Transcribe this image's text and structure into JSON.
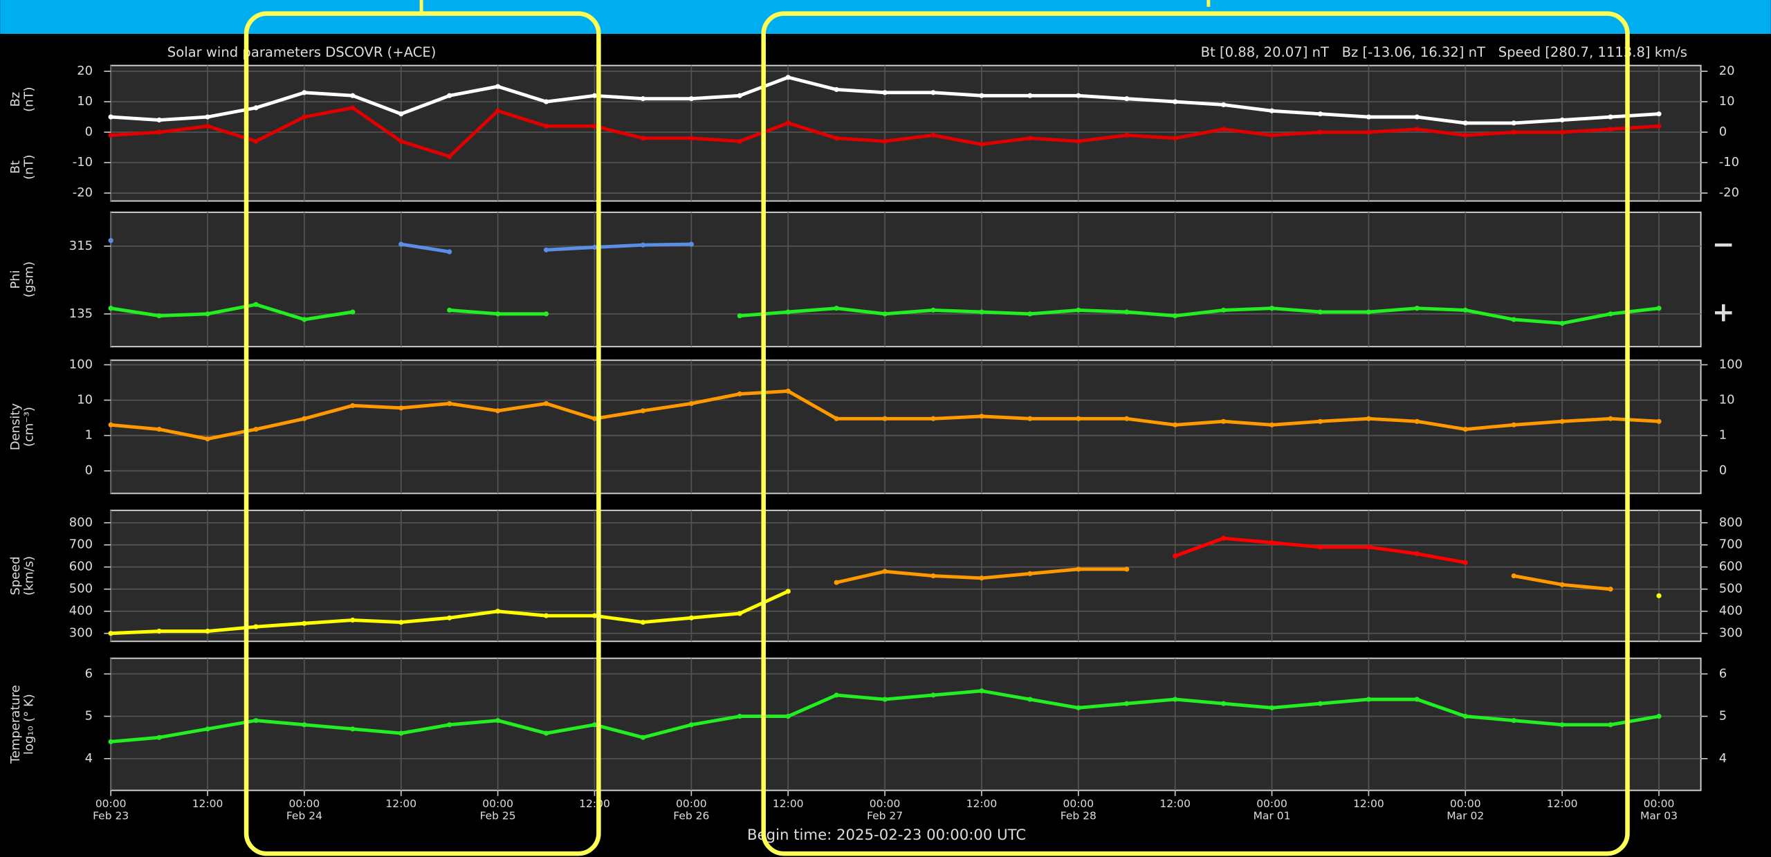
{
  "header_title": "Solar wind parameters DSCOVR (+ACE)",
  "header_stats": "Bt [0.88, 20.07] nT   Bz [-13.06, 16.32] nT   Speed [280.7, 1113.8] km/s",
  "footer": "Begin time: 2025-02-23 00:00:00 UTC",
  "chart_data": [
    {
      "type": "line",
      "grid": true,
      "log": false,
      "ylabels": [
        {
          "lines": [
            "Bz",
            "(nT)"
          ],
          "color": "#e00000"
        },
        {
          "lines": [
            "Bt",
            "(nT)"
          ],
          "color": "#ffffff"
        }
      ],
      "x": [
        0,
        6,
        12,
        18,
        24,
        30,
        36,
        42,
        48,
        54,
        60,
        66,
        72,
        78,
        84,
        90,
        96,
        102,
        108,
        114,
        120,
        126,
        132,
        138,
        144,
        150,
        156,
        162,
        168,
        174,
        180,
        186,
        192
      ],
      "xlim": [
        0,
        197.2
      ],
      "ylim": [
        -22.6,
        21.9
      ],
      "yticks": [
        -20,
        -10,
        0,
        10,
        20
      ],
      "series": [
        {
          "color": "#e00000",
          "values": [
            -1,
            0,
            2,
            -3,
            5,
            8,
            -3,
            -8,
            7,
            2,
            2,
            -2,
            -2,
            -3,
            3,
            -2,
            -3,
            -1,
            -4,
            -2,
            -3,
            -1,
            -2,
            1,
            -1,
            0,
            0,
            1,
            -1,
            0,
            0,
            1,
            2
          ]
        },
        {
          "color": "#ffffff",
          "values": [
            5,
            4,
            5,
            8,
            13,
            12,
            6,
            12,
            15,
            10,
            12,
            11,
            11,
            12,
            18,
            14,
            13,
            13,
            12,
            12,
            12,
            11,
            10,
            9,
            7,
            6,
            5,
            5,
            3,
            3,
            4,
            5,
            6
          ]
        }
      ]
    },
    {
      "type": "line",
      "grid": true,
      "log": false,
      "ylabels": [
        {
          "lines": [
            "Phi",
            "(gsm)"
          ],
          "color": "#5b8ee6"
        }
      ],
      "x": [
        0,
        6,
        12,
        18,
        24,
        30,
        36,
        42,
        48,
        54,
        60,
        66,
        72,
        78,
        84,
        90,
        96,
        102,
        108,
        114,
        120,
        126,
        132,
        138,
        144,
        150,
        156,
        162,
        168,
        174,
        180,
        186,
        192
      ],
      "xlim": [
        0,
        197.2
      ],
      "ylim": [
        48,
        405
      ],
      "yticks": [
        135,
        315
      ],
      "right_markers": [
        {
          "text": "−",
          "color": "#5b8ee6",
          "value": 315
        },
        {
          "text": "+",
          "color": "#22ee22",
          "value": 135
        }
      ],
      "series": [
        {
          "color": "#22ee22",
          "values": [
            150,
            130,
            135,
            160,
            120,
            140,
            null,
            145,
            135,
            135,
            null,
            null,
            null,
            130,
            140,
            150,
            135,
            145,
            140,
            135,
            145,
            140,
            130,
            145,
            150,
            140,
            140,
            150,
            145,
            120,
            110,
            135,
            150
          ]
        },
        {
          "color": "#5b8ee6",
          "values": [
            330,
            null,
            null,
            null,
            null,
            null,
            320,
            300,
            null,
            305,
            312,
            318,
            320,
            null,
            null,
            null,
            null,
            null,
            null,
            null,
            null,
            null,
            null,
            null,
            null,
            null,
            null,
            null,
            null,
            null,
            null,
            null,
            null
          ]
        }
      ]
    },
    {
      "type": "line",
      "grid": true,
      "log": true,
      "ylabels": [
        {
          "lines": [
            "Density",
            "(cm⁻³)"
          ],
          "color": "#ff9900"
        }
      ],
      "x": [
        0,
        6,
        12,
        18,
        24,
        30,
        36,
        42,
        48,
        54,
        60,
        66,
        72,
        78,
        84,
        90,
        96,
        102,
        108,
        114,
        120,
        126,
        132,
        138,
        144,
        150,
        156,
        162,
        168,
        174,
        180,
        186,
        192
      ],
      "xlim": [
        0,
        197.2
      ],
      "ylim": [
        0.023,
        135
      ],
      "yticks": [
        {
          "value": 0.1,
          "label": "0"
        },
        1,
        10,
        100
      ],
      "series": [
        {
          "color": "#ff9900",
          "values": [
            2,
            1.5,
            0.8,
            1.5,
            3,
            7,
            6,
            8,
            5,
            8,
            3,
            5,
            8,
            15,
            18,
            3,
            3,
            3,
            3.5,
            3,
            3,
            3,
            2,
            2.5,
            2,
            2.5,
            3,
            2.5,
            1.5,
            2,
            2.5,
            3,
            2.5
          ]
        }
      ]
    },
    {
      "type": "line",
      "grid": true,
      "log": false,
      "ylabels": [
        {
          "lines": [
            "Speed",
            "(km/s)"
          ],
          "color": "#dddd00"
        }
      ],
      "x": [
        0,
        6,
        12,
        18,
        24,
        30,
        36,
        42,
        48,
        54,
        60,
        66,
        72,
        78,
        84,
        90,
        96,
        102,
        108,
        114,
        120,
        126,
        132,
        138,
        144,
        150,
        156,
        162,
        168,
        174,
        180,
        186,
        192
      ],
      "xlim": [
        0,
        197.2
      ],
      "ylim": [
        264,
        856
      ],
      "yticks": [
        300,
        400,
        500,
        600,
        700,
        800
      ],
      "series": [
        {
          "color": "#ffff00",
          "values": [
            300,
            310,
            310,
            330,
            345,
            360,
            350,
            370,
            400,
            380,
            380,
            350,
            370,
            390,
            490,
            null,
            null,
            null,
            null,
            null,
            null,
            null,
            null,
            null,
            null,
            null,
            null,
            null,
            null,
            null,
            null,
            null,
            470
          ]
        },
        {
          "color": "#ff9900",
          "values": [
            null,
            null,
            null,
            null,
            null,
            null,
            null,
            null,
            null,
            null,
            null,
            null,
            null,
            null,
            null,
            530,
            580,
            560,
            550,
            570,
            590,
            590,
            null,
            null,
            null,
            null,
            null,
            null,
            null,
            560,
            520,
            500,
            null
          ]
        },
        {
          "color": "#ff0000",
          "values": [
            null,
            null,
            null,
            null,
            null,
            null,
            null,
            null,
            null,
            null,
            null,
            null,
            null,
            null,
            null,
            null,
            null,
            null,
            null,
            null,
            null,
            null,
            650,
            730,
            710,
            690,
            690,
            660,
            620,
            null,
            null,
            null,
            null
          ]
        }
      ]
    },
    {
      "type": "line",
      "grid": true,
      "log": false,
      "ylabels": [
        {
          "lines": [
            "Temperature",
            "log₁₀ (° K)"
          ],
          "color": "#22ee22"
        }
      ],
      "x": [
        0,
        6,
        12,
        18,
        24,
        30,
        36,
        42,
        48,
        54,
        60,
        66,
        72,
        78,
        84,
        90,
        96,
        102,
        108,
        114,
        120,
        126,
        132,
        138,
        144,
        150,
        156,
        162,
        168,
        174,
        180,
        186,
        192
      ],
      "xlim": [
        0,
        197.2
      ],
      "ylim": [
        3.25,
        6.37
      ],
      "yticks": [
        4,
        5,
        6
      ],
      "xticks": [
        {
          "value": 0,
          "label": "00:00",
          "date": "Feb 23"
        },
        {
          "value": 12,
          "label": "12:00"
        },
        {
          "value": 24,
          "label": "00:00",
          "date": "Feb 24"
        },
        {
          "value": 36,
          "label": "12:00"
        },
        {
          "value": 48,
          "label": "00:00",
          "date": "Feb 25"
        },
        {
          "value": 60,
          "label": "12:00"
        },
        {
          "value": 72,
          "label": "00:00",
          "date": "Feb 26"
        },
        {
          "value": 84,
          "label": "12:00"
        },
        {
          "value": 96,
          "label": "00:00",
          "date": "Feb 27"
        },
        {
          "value": 108,
          "label": "12:00"
        },
        {
          "value": 120,
          "label": "00:00",
          "date": "Feb 28"
        },
        {
          "value": 132,
          "label": "12:00"
        },
        {
          "value": 144,
          "label": "00:00",
          "date": "Mar 01"
        },
        {
          "value": 156,
          "label": "12:00"
        },
        {
          "value": 168,
          "label": "00:00",
          "date": "Mar 02"
        },
        {
          "value": 180,
          "label": "12:00"
        },
        {
          "value": 192,
          "label": "00:00",
          "date": "Mar 03"
        }
      ],
      "series": [
        {
          "color": "#22ee22",
          "values": [
            4.4,
            4.5,
            4.7,
            4.9,
            4.8,
            4.7,
            4.6,
            4.8,
            4.9,
            4.6,
            4.8,
            4.5,
            4.8,
            5.0,
            5.0,
            5.5,
            5.4,
            5.5,
            5.6,
            5.4,
            5.2,
            5.3,
            5.4,
            5.3,
            5.2,
            5.3,
            5.4,
            5.4,
            5.0,
            4.9,
            4.8,
            4.8,
            5.0
          ]
        }
      ]
    }
  ]
}
